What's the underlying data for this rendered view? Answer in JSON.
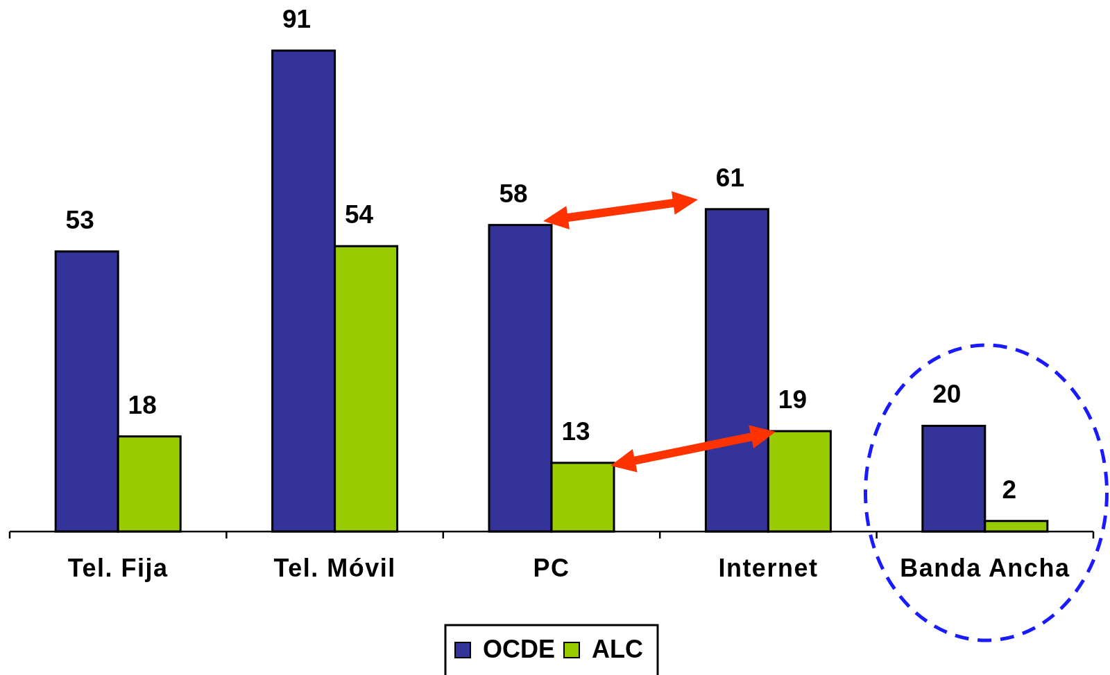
{
  "chart_data": {
    "type": "bar",
    "categories": [
      "Tel. Fija",
      "Tel. Móvil",
      "PC",
      "Internet",
      "Banda Ancha"
    ],
    "series": [
      {
        "name": "OCDE",
        "color": "#333399",
        "values": [
          53,
          91,
          58,
          61,
          20
        ]
      },
      {
        "name": "ALC",
        "color": "#99cc00",
        "values": [
          18,
          54,
          13,
          19,
          2
        ]
      }
    ],
    "data_labels": true,
    "legend": "bottom"
  }
}
